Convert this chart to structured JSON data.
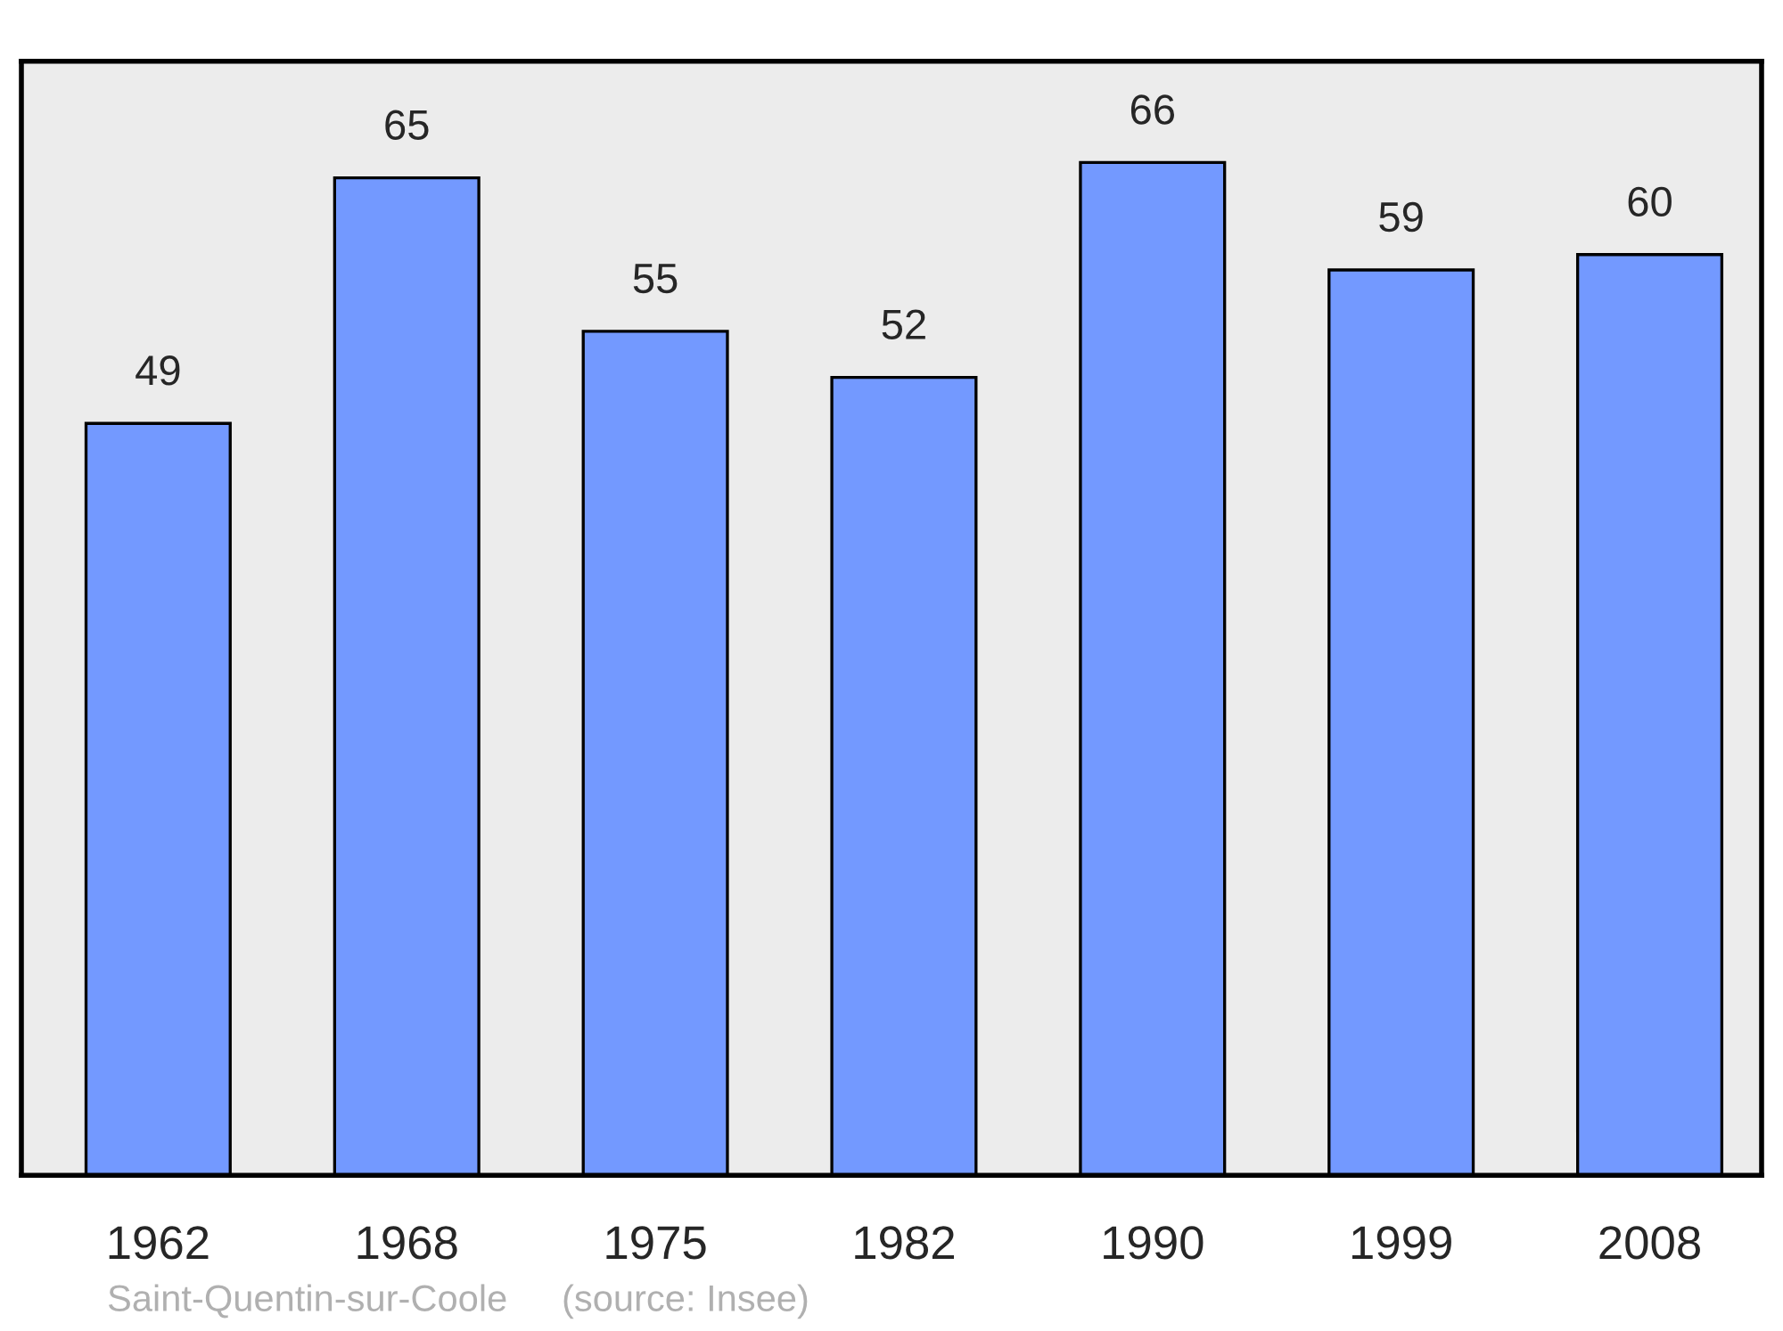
{
  "chart_data": {
    "type": "bar",
    "categories": [
      "1962",
      "1968",
      "1975",
      "1982",
      "1990",
      "1999",
      "2008"
    ],
    "values": [
      49,
      65,
      55,
      52,
      66,
      59,
      60
    ],
    "color": "#7399ff",
    "data_labels": true,
    "grid": false,
    "tick_labels": "x",
    "annotations": [
      "Saint-Quentin-sur-Coole",
      "(source: Insee)"
    ]
  }
}
